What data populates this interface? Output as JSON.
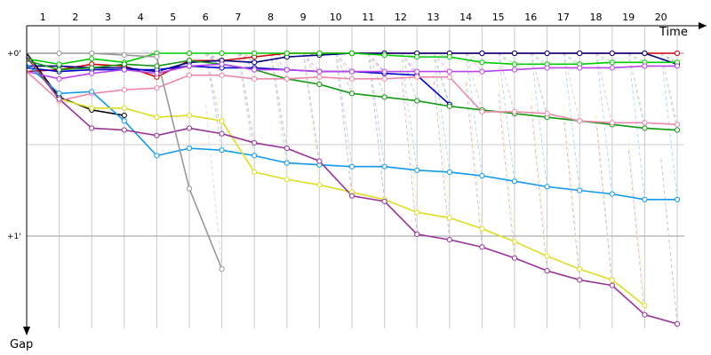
{
  "chart_data": {
    "type": "line",
    "title": "",
    "xlabel": "Time",
    "ylabel": "Gap",
    "x_ticks": [
      "1",
      "2",
      "3",
      "4",
      "5",
      "6",
      "7",
      "8",
      "9",
      "10",
      "11",
      "12",
      "13",
      "14",
      "15",
      "16",
      "17",
      "18",
      "19",
      "20"
    ],
    "y_ticks": [
      "+0'",
      "+1'"
    ],
    "ylim": [
      -0.03,
      1.45
    ],
    "grid": true,
    "legend": "none",
    "series": [
      {
        "color": "#d00000",
        "values": [
          0.1,
          0.09,
          0.06,
          0.07,
          0.13,
          0.04,
          0.04,
          0.02,
          0.0,
          0.0,
          0.0,
          0.0,
          0.0,
          0.0,
          0.0,
          0.0,
          0.0,
          0.0,
          0.0,
          0.0,
          0.0
        ]
      },
      {
        "color": "#000080",
        "values": [
          0.07,
          0.07,
          0.08,
          0.08,
          0.1,
          0.05,
          0.04,
          0.05,
          0.02,
          0.01,
          0.0,
          0.0,
          0.0,
          0.0,
          0.0,
          0.0,
          0.0,
          0.0,
          0.0,
          0.0,
          0.06
        ]
      },
      {
        "color": "#0000cc",
        "values": [
          0.08,
          0.1,
          0.09,
          0.09,
          0.09,
          0.07,
          0.08,
          0.08,
          0.09,
          0.1,
          0.1,
          0.11,
          0.12,
          0.28
        ]
      },
      {
        "color": "#000000",
        "values": [
          0.0,
          0.24,
          0.31,
          0.34
        ]
      },
      {
        "color": "#00cc00",
        "values": [
          0.03,
          0.06,
          0.03,
          0.05,
          0.0,
          0.0,
          0.0,
          0.0,
          0.0,
          0.0,
          0.0,
          0.01,
          0.02,
          0.02,
          0.05,
          0.06,
          0.06,
          0.06,
          0.05,
          0.05,
          0.05
        ]
      },
      {
        "color": "#119911",
        "values": [
          0.04,
          0.09,
          0.08,
          0.06,
          0.07,
          0.04,
          0.06,
          0.09,
          0.14,
          0.17,
          0.22,
          0.24,
          0.26,
          0.29,
          0.31,
          0.33,
          0.35,
          0.37,
          0.39,
          0.41,
          0.42
        ]
      },
      {
        "color": "#bb44ee",
        "values": [
          0.1,
          0.14,
          0.11,
          0.09,
          0.11,
          0.07,
          0.06,
          0.09,
          0.09,
          0.1,
          0.1,
          0.1,
          0.1,
          0.1,
          0.1,
          0.09,
          0.08,
          0.08,
          0.08,
          0.07,
          0.07
        ]
      },
      {
        "color": "#ee88aa",
        "values": [
          0.1,
          0.26,
          0.22,
          0.2,
          0.19,
          0.12,
          0.12,
          0.14,
          0.14,
          0.13,
          0.14,
          0.14,
          0.13,
          0.13,
          0.32,
          0.32,
          0.33,
          0.37,
          0.38,
          0.38,
          0.39
        ]
      },
      {
        "color": "#1199ee",
        "values": [
          0.06,
          0.22,
          0.21,
          0.37,
          0.56,
          0.52,
          0.53,
          0.56,
          0.6,
          0.61,
          0.62,
          0.62,
          0.64,
          0.65,
          0.67,
          0.7,
          0.73,
          0.75,
          0.77,
          0.8,
          0.8
        ]
      },
      {
        "color": "#dddd22",
        "values": [
          0.02,
          0.25,
          0.3,
          0.3,
          0.35,
          0.34,
          0.37,
          0.65,
          0.69,
          0.72,
          0.76,
          0.8,
          0.87,
          0.9,
          0.96,
          1.03,
          1.11,
          1.18,
          1.24,
          1.38
        ]
      },
      {
        "color": "#993399",
        "values": [
          0.02,
          0.25,
          0.41,
          0.42,
          0.45,
          0.41,
          0.44,
          0.49,
          0.52,
          0.59,
          0.78,
          0.81,
          0.99,
          1.02,
          1.06,
          1.12,
          1.19,
          1.24,
          1.27,
          1.43,
          1.48
        ]
      },
      {
        "color": "#999999",
        "values": [
          0.0,
          0.0,
          0.0,
          0.01,
          0.02,
          0.74,
          1.18
        ]
      }
    ]
  }
}
